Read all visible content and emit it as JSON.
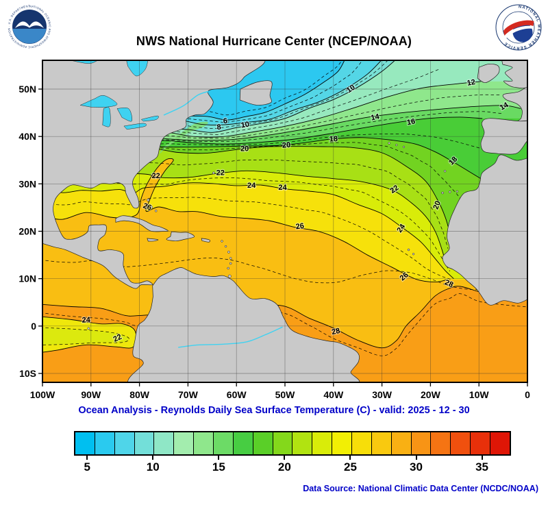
{
  "header": {
    "title": "NWS National Hurricane Center (NCEP/NOAA)"
  },
  "logos": {
    "noaa": {
      "name": "NOAA logo",
      "ring_text": "NATIONAL OCEANIC AND ATMOSPHERIC ADMINISTRATION · U.S. DEPARTMENT OF COMMERCE"
    },
    "nws": {
      "name": "National Weather Service logo",
      "ring_text": "NATIONAL WEATHER SERVICE"
    }
  },
  "caption": "Ocean Analysis - Reynolds Daily Sea Surface Temperature (C) - valid: 2025 - 12 - 30",
  "source": "Data Source: National Climatic Data Center (NCDC/NOAA)",
  "axes": {
    "lon_labels": [
      "100W",
      "90W",
      "80W",
      "70W",
      "60W",
      "50W",
      "40W",
      "30W",
      "20W",
      "10W",
      "0"
    ],
    "lat_labels": [
      "50N",
      "40N",
      "30N",
      "20N",
      "10N",
      "0",
      "10S"
    ]
  },
  "colorbar": {
    "min": 4,
    "max": 37,
    "ticks": [
      5,
      10,
      15,
      20,
      25,
      30,
      35
    ],
    "colors": [
      "#00BFF0",
      "#2ACAEF",
      "#4FD5E9",
      "#73DFD9",
      "#8FE7C6",
      "#A3EDAE",
      "#8FE78C",
      "#6CDB66",
      "#47CD42",
      "#5ACF28",
      "#84D81B",
      "#B1E311",
      "#D9EC09",
      "#F2EF04",
      "#F7DE09",
      "#F9C90F",
      "#F9B013",
      "#F89415",
      "#F57413",
      "#F0500E",
      "#E8300A",
      "#DF1606"
    ]
  },
  "map_data": {
    "type": "contour_map",
    "variable": "Reynolds Daily Sea Surface Temperature (C)",
    "valid_date": "2025 - 12 - 30",
    "contour_interval_solid": 2,
    "land_color": "#c9c9c9",
    "lake_color": "#3fd2f1",
    "band_colors": {
      "base": "#2CC8F0",
      "6": "#54D6E6",
      "8": "#79E0D5",
      "10": "#97E9BE",
      "12": "#8FE78C",
      "14": "#69DA62",
      "16": "#49CD37",
      "18": "#72D321",
      "20": "#A8E015",
      "22": "#D9EC09",
      "24": "#F6E10B",
      "26": "#F9BE12",
      "28": "#F99E16"
    },
    "isotherms": [
      {
        "v": 6,
        "pts": [
          [
            -100.5,
            44.8
          ],
          [
            -80,
            44.8
          ],
          [
            -71,
            44.6
          ],
          [
            -66,
            44.1
          ],
          [
            -62,
            43.6
          ],
          [
            -58,
            44.1
          ],
          [
            -54,
            45.2
          ],
          [
            -50,
            46.8
          ],
          [
            -46,
            48.9
          ],
          [
            -42,
            51.4
          ],
          [
            -39,
            54
          ],
          [
            -37.3,
            57
          ]
        ]
      },
      {
        "v": 8,
        "pts": [
          [
            -100.5,
            43.4
          ],
          [
            -80,
            43.4
          ],
          [
            -72,
            43.2
          ],
          [
            -67,
            42.7
          ],
          [
            -63,
            42.3
          ],
          [
            -58,
            42.9
          ],
          [
            -53,
            43.9
          ],
          [
            -48,
            45.4
          ],
          [
            -43,
            47.4
          ],
          [
            -38,
            49.9
          ],
          [
            -33,
            52.9
          ],
          [
            -29.3,
            57
          ]
        ]
      },
      {
        "v": 10,
        "pts": [
          [
            -100.5,
            42
          ],
          [
            -80,
            42
          ],
          [
            -74,
            41.8
          ],
          [
            -70,
            41.3
          ],
          [
            -65,
            41.1
          ],
          [
            -60,
            41.7
          ],
          [
            -55,
            42.7
          ],
          [
            -50,
            44
          ],
          [
            -45,
            45.7
          ],
          [
            -40,
            47.9
          ],
          [
            -35,
            50.5
          ],
          [
            -30,
            53.5
          ],
          [
            -26.3,
            57
          ]
        ]
      },
      {
        "v": 12,
        "pts": [
          [
            -100.5,
            40.8
          ],
          [
            -80,
            40.8
          ],
          [
            -74,
            40.6
          ],
          [
            -69,
            40.2
          ],
          [
            -63,
            40.1
          ],
          [
            -57,
            40.7
          ],
          [
            -50,
            41.9
          ],
          [
            -43,
            43.6
          ],
          [
            -36,
            45.9
          ],
          [
            -29,
            48.4
          ],
          [
            -22,
            50.4
          ],
          [
            -15,
            51.3
          ],
          [
            -9.6,
            51.6
          ]
        ]
      },
      {
        "v": 14,
        "pts": [
          [
            -100.5,
            39.8
          ],
          [
            -80,
            39.8
          ],
          [
            -74,
            39.7
          ],
          [
            -68,
            39.3
          ],
          [
            -61,
            39.3
          ],
          [
            -54,
            40
          ],
          [
            -47,
            41.1
          ],
          [
            -40,
            42.5
          ],
          [
            -33,
            44
          ],
          [
            -26,
            45.1
          ],
          [
            -19,
            45.9
          ],
          [
            -12,
            46.5
          ],
          [
            -4.9,
            46.7
          ],
          [
            -1.4,
            45.9
          ]
        ]
      },
      {
        "v": 16,
        "pts": [
          [
            -100.5,
            39
          ],
          [
            -80,
            39
          ],
          [
            -75,
            38.9
          ],
          [
            -69,
            38.6
          ],
          [
            -62,
            38.5
          ],
          [
            -55,
            39
          ],
          [
            -48,
            39.7
          ],
          [
            -41,
            40.7
          ],
          [
            -34,
            41.8
          ],
          [
            -27,
            42.8
          ],
          [
            -20,
            43.6
          ],
          [
            -14,
            44
          ],
          [
            -9.3,
            43.8
          ]
        ]
      },
      {
        "v": 18,
        "pts": [
          [
            -100.5,
            38.2
          ],
          [
            -80,
            38.2
          ],
          [
            -76,
            38.1
          ],
          [
            -70,
            37.8
          ],
          [
            -64,
            37.6
          ],
          [
            -58,
            37.9
          ],
          [
            -52,
            38.3
          ],
          [
            -46,
            38.8
          ],
          [
            -40,
            39.3
          ],
          [
            -34,
            39.6
          ],
          [
            -28,
            39.4
          ],
          [
            -23,
            38.4
          ],
          [
            -19,
            36.7
          ],
          [
            -15.5,
            34.7
          ],
          [
            -12,
            32.7
          ],
          [
            -9.6,
            31.1
          ]
        ]
      },
      {
        "v": 20,
        "pts": [
          [
            -100.5,
            37.3
          ],
          [
            -80,
            37.3
          ],
          [
            -77,
            37.2
          ],
          [
            -72,
            36.8
          ],
          [
            -66,
            36.7
          ],
          [
            -60,
            37.1
          ],
          [
            -54,
            37.6
          ],
          [
            -48,
            38
          ],
          [
            -42,
            38.1
          ],
          [
            -36,
            37.6
          ],
          [
            -30,
            36.3
          ],
          [
            -25,
            33.9
          ],
          [
            -21,
            30.4
          ],
          [
            -18.4,
            26.6
          ],
          [
            -16.9,
            23
          ],
          [
            -16,
            19.6
          ]
        ]
      },
      {
        "v": 22,
        "pts": [
          [
            -100.5,
            32
          ],
          [
            -80.5,
            32
          ],
          [
            -76,
            31.4
          ],
          [
            -70,
            31.6
          ],
          [
            -64,
            32.2
          ],
          [
            -58,
            32.5
          ],
          [
            -52,
            32.3
          ],
          [
            -46,
            31.9
          ],
          [
            -40,
            31.2
          ],
          [
            -34,
            30.2
          ],
          [
            -28,
            28.6
          ],
          [
            -24,
            26.2
          ],
          [
            -21,
            23.2
          ],
          [
            -19,
            19.7
          ],
          [
            -17.7,
            16.2
          ],
          [
            -16.8,
            13.1
          ]
        ]
      },
      {
        "v": 24,
        "pts": [
          [
            -100.5,
            29.3
          ],
          [
            -96,
            28.1
          ],
          [
            -92,
            28.7
          ],
          [
            -88,
            28.4
          ],
          [
            -84,
            28.9
          ],
          [
            -81.4,
            28.1
          ],
          [
            -79.2,
            28.9
          ],
          [
            -75,
            29.7
          ],
          [
            -70,
            30
          ],
          [
            -65,
            30.1
          ],
          [
            -60,
            29.8
          ],
          [
            -55,
            29.5
          ],
          [
            -50,
            29.1
          ],
          [
            -45,
            28.5
          ],
          [
            -40,
            27.5
          ],
          [
            -35,
            25.9
          ],
          [
            -30,
            23.6
          ],
          [
            -26,
            21
          ],
          [
            -22,
            17.7
          ],
          [
            -19,
            14.4
          ],
          [
            -17,
            11.6
          ],
          [
            -15.2,
            10
          ]
        ]
      },
      {
        "v": 26,
        "pts": [
          [
            -100.5,
            23.4
          ],
          [
            -96,
            22.7
          ],
          [
            -91,
            23.7
          ],
          [
            -86,
            23.1
          ],
          [
            -83,
            22.6
          ],
          [
            -80.4,
            23.9
          ],
          [
            -79.6,
            27.3
          ],
          [
            -78.4,
            30.2
          ],
          [
            -76.4,
            33.1
          ],
          [
            -74.4,
            35
          ],
          [
            -73,
            35.1
          ],
          [
            -74.7,
            32.6
          ],
          [
            -76.5,
            29.7
          ],
          [
            -77.9,
            26.7
          ],
          [
            -78.6,
            24.4
          ],
          [
            -76,
            24.9
          ],
          [
            -72,
            24.4
          ],
          [
            -68,
            23.9
          ],
          [
            -63,
            23.3
          ],
          [
            -58,
            22.7
          ],
          [
            -53,
            22
          ],
          [
            -48,
            21.1
          ],
          [
            -43,
            19.8
          ],
          [
            -38,
            17.9
          ],
          [
            -33,
            15.2
          ],
          [
            -28,
            12.2
          ],
          [
            -23,
            10
          ],
          [
            -19,
            9.2
          ],
          [
            -16.6,
            9.8
          ]
        ]
      },
      {
        "v": 28,
        "pts": [
          [
            -100.5,
            4.6
          ],
          [
            -94,
            4.1
          ],
          [
            -88,
            3.5
          ],
          [
            -83,
            2.4
          ],
          [
            -79.8,
            2
          ],
          [
            -70,
            3
          ],
          [
            -60,
            3.8
          ],
          [
            -51,
            4.4
          ],
          [
            -45,
            1.9
          ],
          [
            -40,
            -0.6
          ],
          [
            -35,
            -3
          ],
          [
            -30,
            -4.4
          ],
          [
            -27,
            -3.1
          ],
          [
            -25,
            -0.2
          ],
          [
            -22,
            3.3
          ],
          [
            -19,
            6.3
          ],
          [
            -16,
            7.9
          ],
          [
            -13.8,
            8.6
          ],
          [
            -10,
            7
          ],
          [
            -5,
            6.1
          ],
          [
            0.5,
            5.8
          ]
        ]
      }
    ],
    "contour_labels": [
      {
        "v": 6,
        "lon": -62.3,
        "lat": 43.2,
        "rot": -5
      },
      {
        "v": 8,
        "lon": -63.6,
        "lat": 41.9,
        "rot": -5
      },
      {
        "v": 10,
        "lon": -58.2,
        "lat": 42.4,
        "rot": -10
      },
      {
        "v": 10,
        "lon": -36.4,
        "lat": 50,
        "rot": -35
      },
      {
        "v": 12,
        "lon": -11.6,
        "lat": 51.3,
        "rot": -10
      },
      {
        "v": 14,
        "lon": -31.4,
        "lat": 44,
        "rot": -12
      },
      {
        "v": 14,
        "lon": -4.8,
        "lat": 46.3,
        "rot": -30
      },
      {
        "v": 16,
        "lon": -24,
        "lat": 43,
        "rot": -10
      },
      {
        "v": 18,
        "lon": -40,
        "lat": 39.4,
        "rot": -3
      },
      {
        "v": 18,
        "lon": -15.3,
        "lat": 34.8,
        "rot": -45
      },
      {
        "v": 20,
        "lon": -58.3,
        "lat": 37.3,
        "rot": 0
      },
      {
        "v": 20,
        "lon": -49.7,
        "lat": 38.1,
        "rot": -5
      },
      {
        "v": 20,
        "lon": -18.6,
        "lat": 25.5,
        "rot": -70
      },
      {
        "v": 22,
        "lon": -76.6,
        "lat": 31.6,
        "rot": 0
      },
      {
        "v": 22,
        "lon": -63.3,
        "lat": 32.3,
        "rot": 0
      },
      {
        "v": 22,
        "lon": -27.4,
        "lat": 28.8,
        "rot": -35
      },
      {
        "v": 24,
        "lon": -56.9,
        "lat": 29.6,
        "rot": 0
      },
      {
        "v": 24,
        "lon": -50.5,
        "lat": 29.2,
        "rot": 0
      },
      {
        "v": 24,
        "lon": -26,
        "lat": 20.6,
        "rot": -55
      },
      {
        "v": 26,
        "lon": -78.4,
        "lat": 25.1,
        "rot": 20
      },
      {
        "v": 26,
        "lon": -46.9,
        "lat": 21,
        "rot": -8
      },
      {
        "v": 26,
        "lon": -25.4,
        "lat": 10.4,
        "rot": -40
      },
      {
        "v": 28,
        "lon": -39.5,
        "lat": -1.2,
        "rot": -12
      },
      {
        "v": 28,
        "lon": -16.2,
        "lat": 8.9,
        "rot": 25
      },
      {
        "v": 24,
        "lon": -91,
        "lat": 1.2,
        "rot": -3
      },
      {
        "v": 22,
        "lon": -84.5,
        "lat": -2.6,
        "rot": -25
      }
    ]
  }
}
